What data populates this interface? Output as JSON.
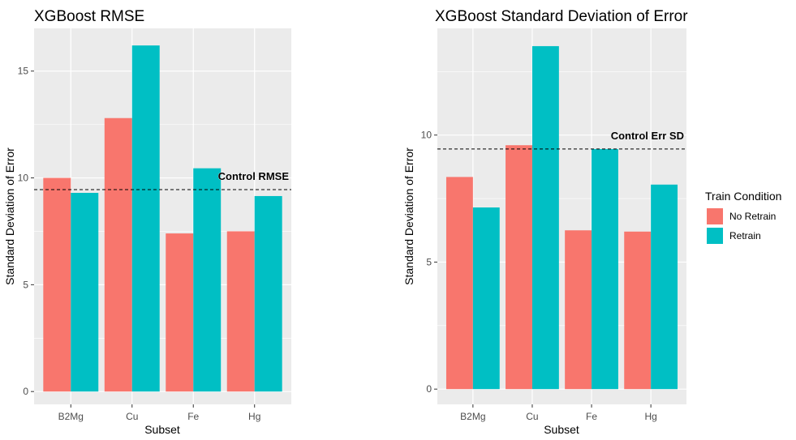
{
  "chart_data": [
    {
      "type": "bar",
      "title": "XGBoost RMSE",
      "xlabel": "Subset",
      "ylabel": "Standard Deviation of Error",
      "categories": [
        "B2Mg",
        "Cu",
        "Fe",
        "Hg"
      ],
      "series": [
        {
          "name": "No Retrain",
          "values": [
            10.0,
            12.8,
            7.4,
            7.5
          ]
        },
        {
          "name": "Retrain",
          "values": [
            9.3,
            16.2,
            10.45,
            9.15
          ]
        }
      ],
      "yticks": [
        0,
        5,
        10,
        15
      ],
      "ylim": [
        -0.6,
        17.0
      ],
      "reference_line": {
        "value": 9.45,
        "label": "Control RMSE"
      },
      "grid": true
    },
    {
      "type": "bar",
      "title": "XGBoost Standard Deviation of Error",
      "xlabel": "Subset",
      "ylabel": "Standard Deviation of Error",
      "categories": [
        "B2Mg",
        "Cu",
        "Fe",
        "Hg"
      ],
      "series": [
        {
          "name": "No Retrain",
          "values": [
            8.35,
            9.6,
            6.25,
            6.2
          ]
        },
        {
          "name": "Retrain",
          "values": [
            7.15,
            13.5,
            9.45,
            8.05
          ]
        }
      ],
      "yticks": [
        0,
        5,
        10
      ],
      "ylim": [
        -0.6,
        14.2
      ],
      "reference_line": {
        "value": 9.45,
        "label": "Control Err SD"
      },
      "grid": true
    }
  ],
  "legend": {
    "title": "Train Condition",
    "placement": "right",
    "items": [
      {
        "label": "No Retrain",
        "color": "#F8766D"
      },
      {
        "label": "Retrain",
        "color": "#00BFC4"
      }
    ]
  },
  "colors": {
    "panel": "#EBEBEB",
    "grid": "#FFFFFF"
  }
}
